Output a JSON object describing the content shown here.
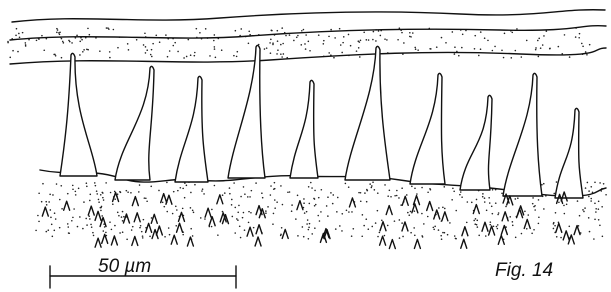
{
  "scale_bar": {
    "label": "50 µm"
  },
  "caption": "Fig. 14"
}
